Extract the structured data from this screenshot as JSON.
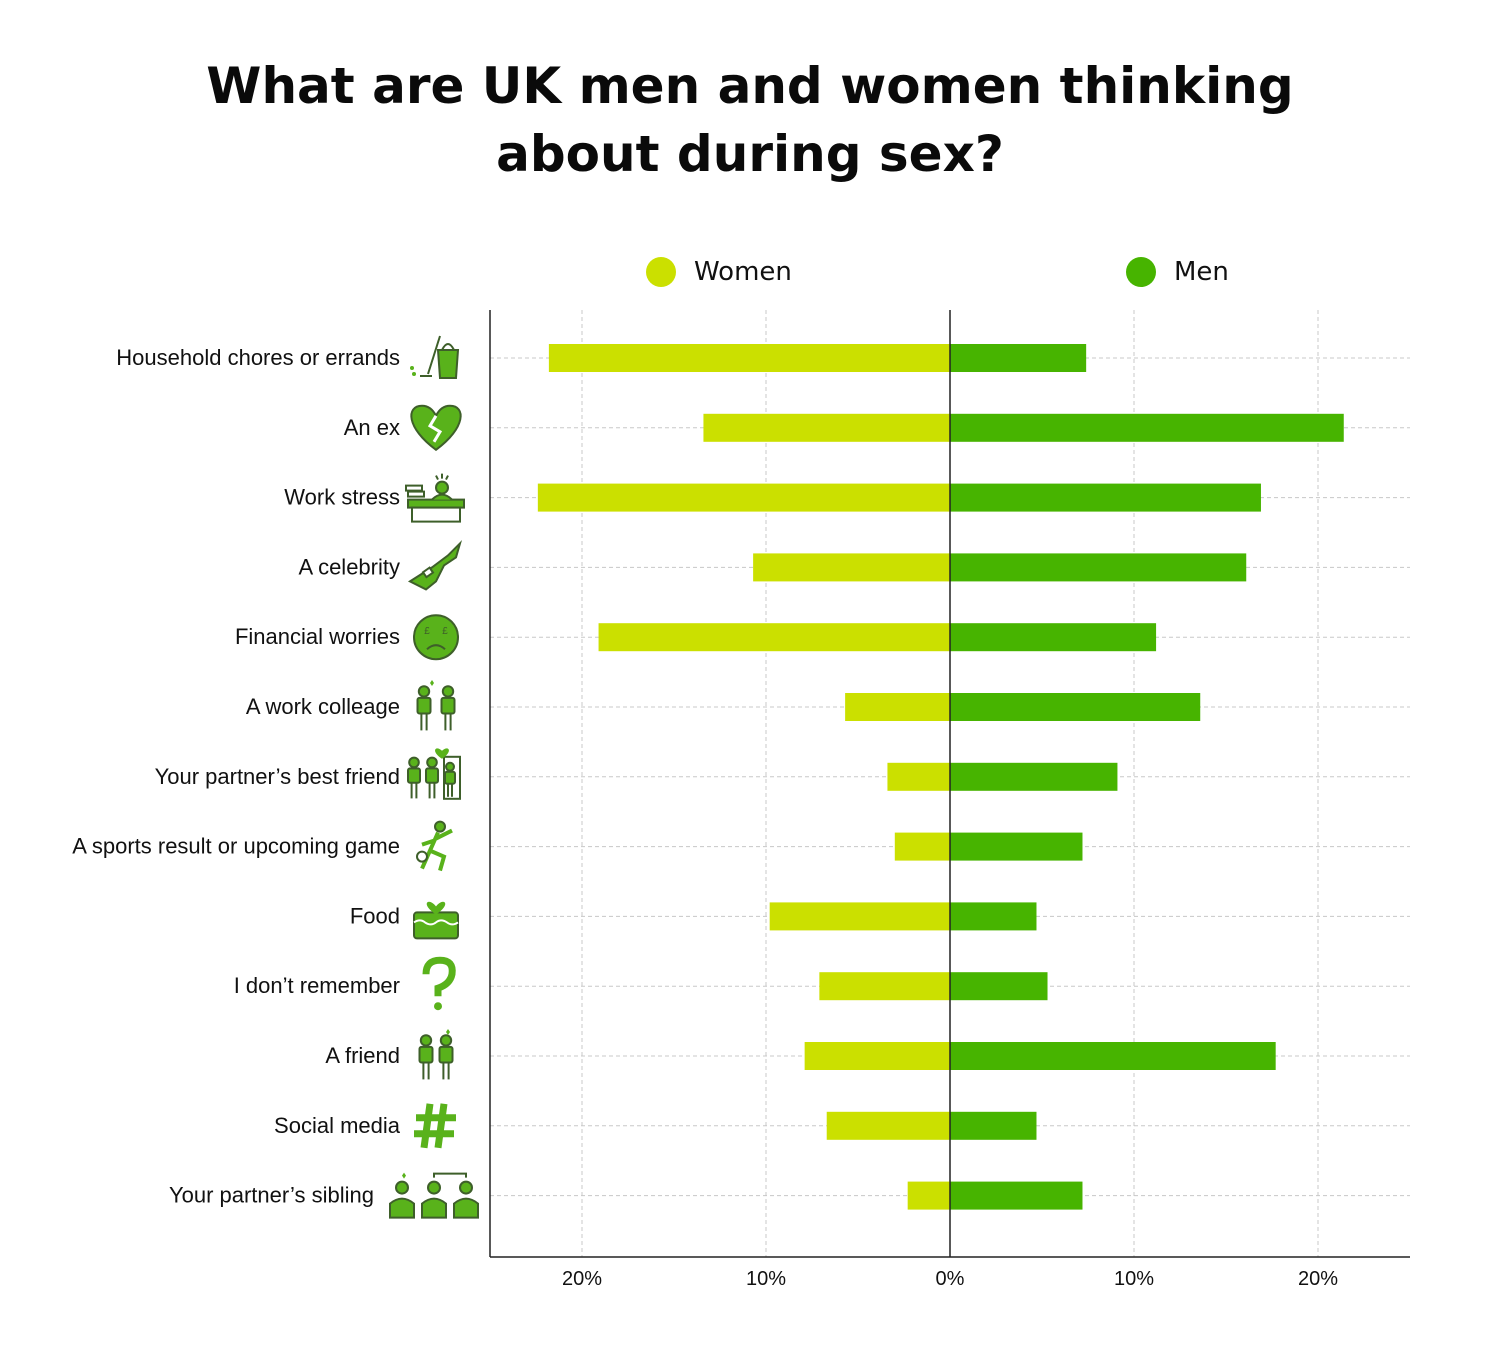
{
  "title_lines": [
    "What are UK men and women thinking",
    "about during sex?"
  ],
  "legend": {
    "women": {
      "label": "Women",
      "color": "#cbe000"
    },
    "men": {
      "label": "Men",
      "color": "#47b400"
    }
  },
  "chart_data": {
    "type": "bar",
    "orientation": "horizontal-diverging",
    "title": "What are UK men and women thinking about during sex?",
    "categories": [
      "Household chores or errands",
      "An ex",
      "Work stress",
      "A celebrity",
      "Financial worries",
      "A work colleage",
      "Your partner’s best friend",
      "A sports result or upcoming game",
      "Food",
      "I don’t remember",
      "A friend",
      "Social media",
      "Your partner’s sibling"
    ],
    "icons": [
      "mop-and-bucket-icon",
      "broken-heart-icon",
      "stressed-worker-desk-icon",
      "electric-guitar-icon",
      "sad-pound-face-icon",
      "colleagues-flirt-icon",
      "partner-best-friend-icon",
      "footballer-kick-icon",
      "cake-with-heart-icon",
      "question-mark-icon",
      "two-friends-heart-icon",
      "hashtag-icon",
      "siblings-family-icon"
    ],
    "series": [
      {
        "name": "Women",
        "color": "#cbe000",
        "values": [
          21.8,
          13.4,
          22.4,
          10.7,
          19.1,
          5.7,
          3.4,
          3.0,
          9.8,
          7.1,
          7.9,
          6.7,
          2.3
        ]
      },
      {
        "name": "Men",
        "color": "#47b400",
        "values": [
          7.4,
          21.4,
          16.9,
          16.1,
          11.2,
          13.6,
          9.1,
          7.2,
          4.7,
          5.3,
          17.7,
          4.7,
          7.2
        ]
      }
    ],
    "xlim": [
      -25,
      25
    ],
    "xticks": [
      -20,
      -10,
      0,
      10,
      20
    ],
    "xtick_labels": [
      "20%",
      "10%",
      "0%",
      "10%",
      "20%"
    ],
    "grid": true
  }
}
